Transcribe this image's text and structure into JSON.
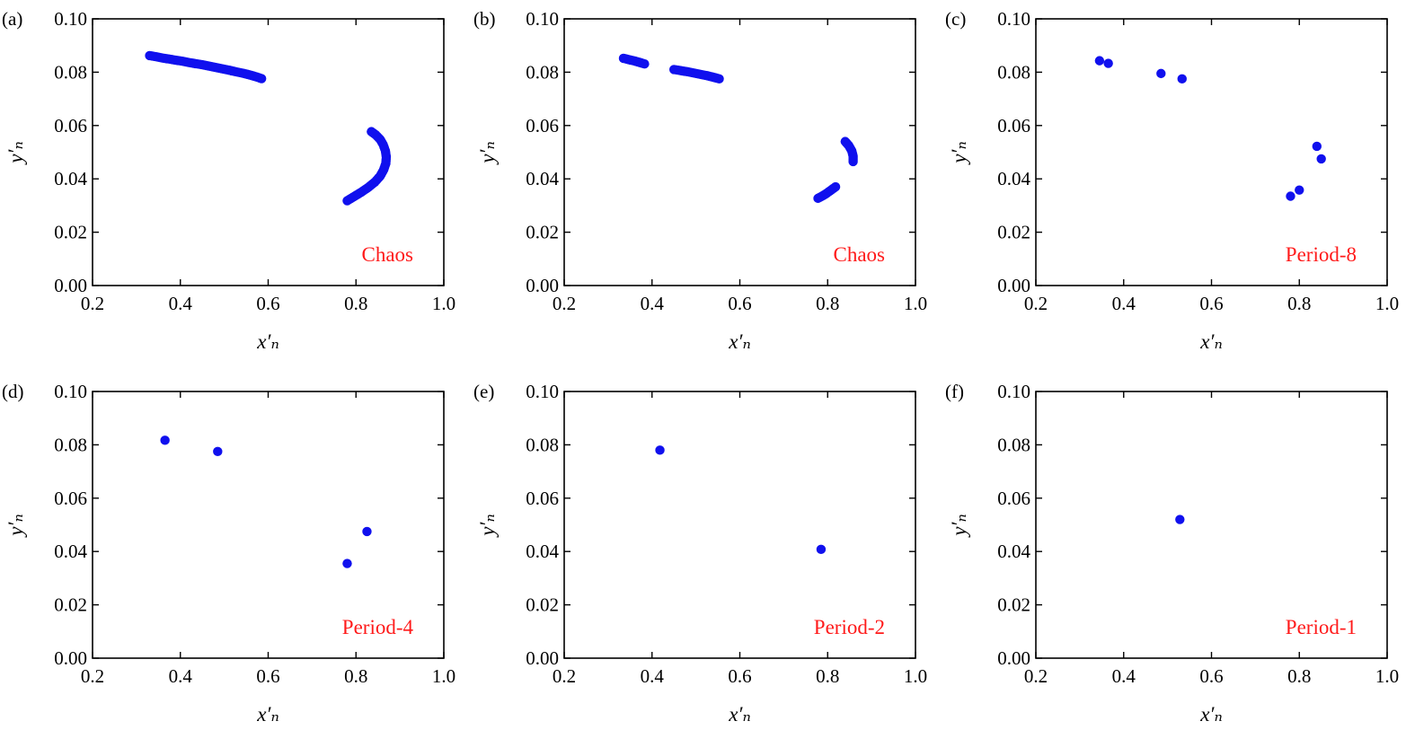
{
  "colors": {
    "points": "#1010ee",
    "annotation": "#ff1a1a",
    "axes": "#000000"
  },
  "chart_data": [
    {
      "type": "scatter",
      "panel_label": "(a)",
      "annotation": "Chaos",
      "xlabel": "x′ₙ",
      "ylabel": "y′ₙ",
      "xlim": [
        0.2,
        1.0
      ],
      "ylim": [
        0.0,
        0.1
      ],
      "xticks": [
        "0.2",
        "0.4",
        "0.6",
        "0.8",
        "1.0"
      ],
      "yticks": [
        "0.00",
        "0.02",
        "0.04",
        "0.06",
        "0.08",
        "0.10"
      ],
      "series": [
        {
          "values": [
            [
              0.33,
              0.0862
            ],
            [
              0.345,
              0.0858
            ],
            [
              0.36,
              0.0853
            ],
            [
              0.375,
              0.0849
            ],
            [
              0.39,
              0.0845
            ],
            [
              0.405,
              0.0841
            ],
            [
              0.42,
              0.0836
            ],
            [
              0.435,
              0.0832
            ],
            [
              0.45,
              0.0828
            ],
            [
              0.465,
              0.0823
            ],
            [
              0.48,
              0.0818
            ],
            [
              0.495,
              0.0813
            ],
            [
              0.51,
              0.0808
            ],
            [
              0.525,
              0.0802
            ],
            [
              0.54,
              0.0797
            ],
            [
              0.555,
              0.0791
            ],
            [
              0.57,
              0.0784
            ],
            [
              0.585,
              0.0776
            ],
            [
              0.835,
              0.0577
            ],
            [
              0.845,
              0.0565
            ],
            [
              0.855,
              0.0548
            ],
            [
              0.862,
              0.0528
            ],
            [
              0.867,
              0.0505
            ],
            [
              0.869,
              0.0482
            ],
            [
              0.868,
              0.0458
            ],
            [
              0.863,
              0.0434
            ],
            [
              0.855,
              0.041
            ],
            [
              0.843,
              0.0388
            ],
            [
              0.828,
              0.0368
            ],
            [
              0.812,
              0.035
            ],
            [
              0.796,
              0.0334
            ],
            [
              0.78,
              0.0318
            ]
          ]
        }
      ]
    },
    {
      "type": "scatter",
      "panel_label": "(b)",
      "annotation": "Chaos",
      "xlabel": "x′ₙ",
      "ylabel": "y′ₙ",
      "xlim": [
        0.2,
        1.0
      ],
      "ylim": [
        0.0,
        0.1
      ],
      "xticks": [
        "0.2",
        "0.4",
        "0.6",
        "0.8",
        "1.0"
      ],
      "yticks": [
        "0.00",
        "0.02",
        "0.04",
        "0.06",
        "0.08",
        "0.10"
      ],
      "series": [
        {
          "values": [
            [
              0.335,
              0.0852
            ],
            [
              0.345,
              0.0848
            ],
            [
              0.355,
              0.0844
            ],
            [
              0.365,
              0.084
            ],
            [
              0.375,
              0.0835
            ],
            [
              0.383,
              0.0831
            ],
            [
              0.45,
              0.081
            ],
            [
              0.465,
              0.0806
            ],
            [
              0.48,
              0.0802
            ],
            [
              0.495,
              0.0797
            ],
            [
              0.51,
              0.0792
            ],
            [
              0.525,
              0.0787
            ],
            [
              0.54,
              0.0781
            ],
            [
              0.553,
              0.0775
            ],
            [
              0.84,
              0.054
            ],
            [
              0.848,
              0.0525
            ],
            [
              0.855,
              0.0505
            ],
            [
              0.858,
              0.0485
            ],
            [
              0.858,
              0.0465
            ],
            [
              0.818,
              0.037
            ],
            [
              0.808,
              0.0358
            ],
            [
              0.797,
              0.0345
            ],
            [
              0.787,
              0.0335
            ],
            [
              0.778,
              0.0327
            ]
          ]
        }
      ]
    },
    {
      "type": "scatter",
      "panel_label": "(c)",
      "annotation": "Period-8",
      "xlabel": "x′ₙ",
      "ylabel": "y′ₙ",
      "xlim": [
        0.2,
        1.0
      ],
      "ylim": [
        0.0,
        0.1
      ],
      "xticks": [
        "0.2",
        "0.4",
        "0.6",
        "0.8",
        "1.0"
      ],
      "yticks": [
        "0.00",
        "0.02",
        "0.04",
        "0.06",
        "0.08",
        "0.10"
      ],
      "series": [
        {
          "values": [
            [
              0.345,
              0.0843
            ],
            [
              0.365,
              0.0833
            ],
            [
              0.485,
              0.0795
            ],
            [
              0.533,
              0.0775
            ],
            [
              0.84,
              0.0522
            ],
            [
              0.85,
              0.0475
            ],
            [
              0.8,
              0.0358
            ],
            [
              0.78,
              0.0335
            ]
          ]
        }
      ]
    },
    {
      "type": "scatter",
      "panel_label": "(d)",
      "annotation": "Period-4",
      "xlabel": "x′ₙ",
      "ylabel": "y′ₙ",
      "xlim": [
        0.2,
        1.0
      ],
      "ylim": [
        0.0,
        0.1
      ],
      "xticks": [
        "0.2",
        "0.4",
        "0.6",
        "0.8",
        "1.0"
      ],
      "yticks": [
        "0.00",
        "0.02",
        "0.04",
        "0.06",
        "0.08",
        "0.10"
      ],
      "series": [
        {
          "values": [
            [
              0.365,
              0.0817
            ],
            [
              0.485,
              0.0775
            ],
            [
              0.825,
              0.0475
            ],
            [
              0.78,
              0.0355
            ]
          ]
        }
      ]
    },
    {
      "type": "scatter",
      "panel_label": "(e)",
      "annotation": "Period-2",
      "xlabel": "x′ₙ",
      "ylabel": "y′ₙ",
      "xlim": [
        0.2,
        1.0
      ],
      "ylim": [
        0.0,
        0.1
      ],
      "xticks": [
        "0.2",
        "0.4",
        "0.6",
        "0.8",
        "1.0"
      ],
      "yticks": [
        "0.00",
        "0.02",
        "0.04",
        "0.06",
        "0.08",
        "0.10"
      ],
      "series": [
        {
          "values": [
            [
              0.418,
              0.078
            ],
            [
              0.785,
              0.0408
            ]
          ]
        }
      ]
    },
    {
      "type": "scatter",
      "panel_label": "(f)",
      "annotation": "Period-1",
      "xlabel": "x′ₙ",
      "ylabel": "y′ₙ",
      "xlim": [
        0.2,
        1.0
      ],
      "ylim": [
        0.0,
        0.1
      ],
      "xticks": [
        "0.2",
        "0.4",
        "0.6",
        "0.8",
        "1.0"
      ],
      "yticks": [
        "0.00",
        "0.02",
        "0.04",
        "0.06",
        "0.08",
        "0.10"
      ],
      "series": [
        {
          "values": [
            [
              0.528,
              0.052
            ]
          ]
        }
      ]
    }
  ]
}
